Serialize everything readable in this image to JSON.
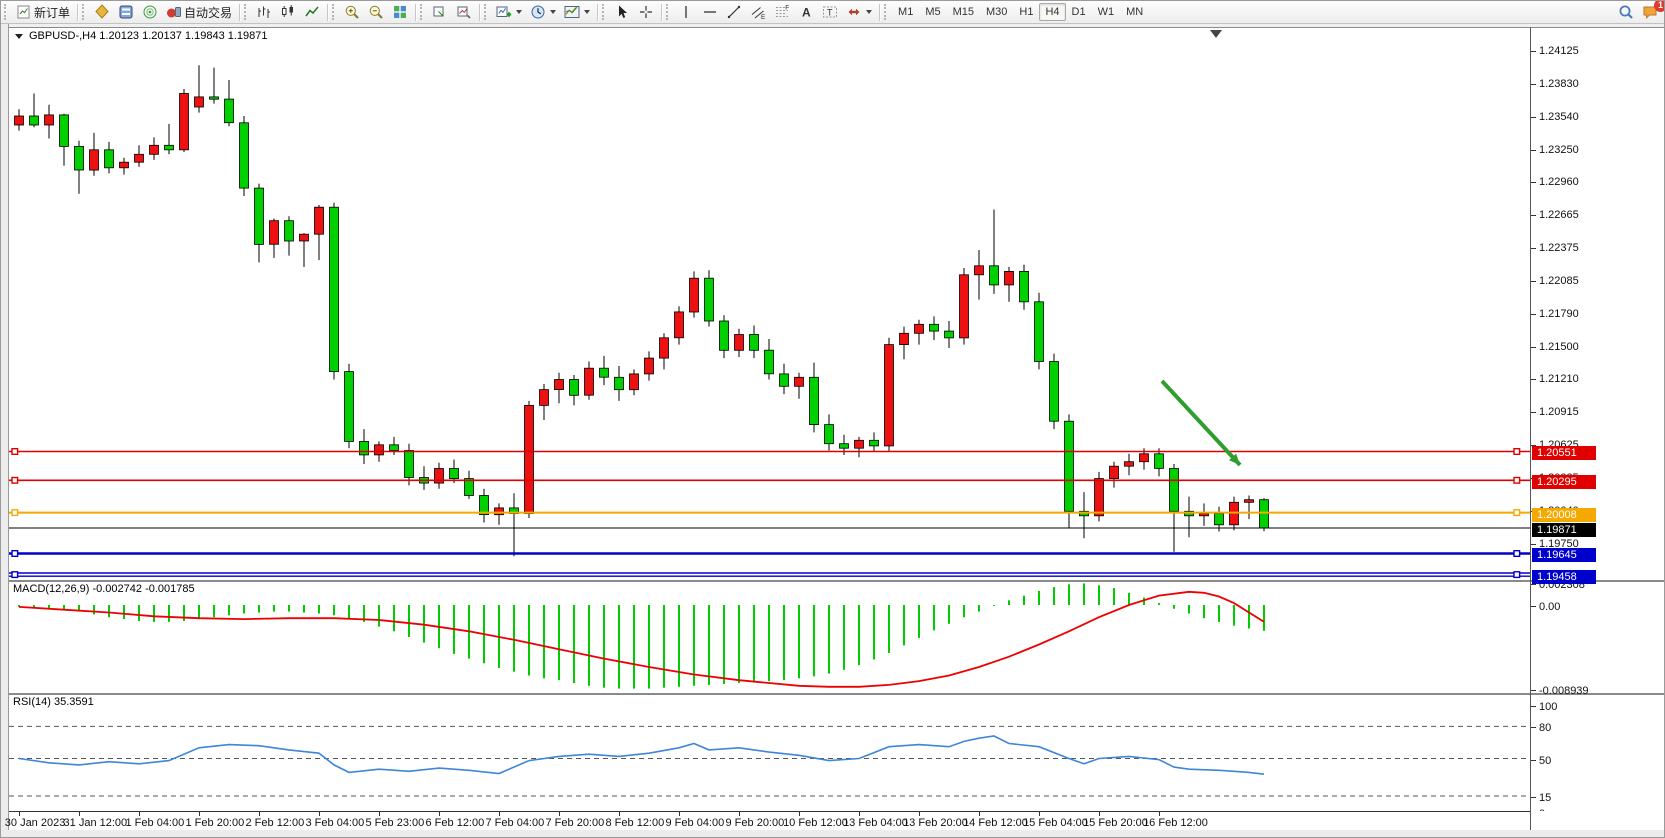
{
  "toolbar": {
    "groups": [
      [
        {
          "name": "new-order-button",
          "icon": "new-order",
          "label": "新订单"
        }
      ],
      [
        {
          "name": "market-watch-button",
          "icon": "market-watch"
        },
        {
          "name": "data-window-button",
          "icon": "data-window"
        },
        {
          "name": "signals-button",
          "icon": "signals"
        },
        {
          "name": "autotrading-button",
          "icon": "autotrading",
          "label": "自动交易"
        }
      ],
      [
        {
          "name": "bar-chart-button",
          "icon": "chart-bars"
        },
        {
          "name": "candlestick-chart-button",
          "icon": "chart-candles"
        },
        {
          "name": "line-chart-button",
          "icon": "chart-line"
        }
      ],
      [
        {
          "name": "zoom-in-button",
          "icon": "zoom-in"
        },
        {
          "name": "zoom-out-button",
          "icon": "zoom-out"
        },
        {
          "name": "tile-windows-button",
          "icon": "tile-windows"
        }
      ],
      [
        {
          "name": "auto-arrange-button",
          "icon": "arrange-windows"
        },
        {
          "name": "track-chart-button",
          "icon": "track-chart"
        }
      ],
      [
        {
          "name": "add-indicator-button",
          "icon": "add-indicator",
          "caret": true
        },
        {
          "name": "periods-button",
          "icon": "periods-clock",
          "caret": true
        },
        {
          "name": "templates-button",
          "icon": "templates",
          "caret": true
        }
      ],
      [
        {
          "name": "cursor-button",
          "icon": "cursor"
        },
        {
          "name": "crosshair-button",
          "icon": "crosshair"
        }
      ],
      [
        {
          "name": "vertical-line-button",
          "icon": "vline"
        },
        {
          "name": "horizontal-line-button",
          "icon": "hline"
        },
        {
          "name": "trendline-button",
          "icon": "trendline"
        },
        {
          "name": "channel-button",
          "icon": "channel"
        },
        {
          "name": "fibonacci-button",
          "icon": "fibonacci"
        },
        {
          "name": "text-button",
          "icon": "text"
        },
        {
          "name": "label-button",
          "icon": "label"
        },
        {
          "name": "arrows-button",
          "icon": "arrows",
          "caret": true
        }
      ]
    ],
    "timeframes": [
      {
        "name": "timeframe-m1",
        "label": "M1"
      },
      {
        "name": "timeframe-m5",
        "label": "M5"
      },
      {
        "name": "timeframe-m15",
        "label": "M15"
      },
      {
        "name": "timeframe-m30",
        "label": "M30"
      },
      {
        "name": "timeframe-h1",
        "label": "H1"
      },
      {
        "name": "timeframe-h4",
        "label": "H4",
        "active": true
      },
      {
        "name": "timeframe-d1",
        "label": "D1"
      },
      {
        "name": "timeframe-w1",
        "label": "W1"
      },
      {
        "name": "timeframe-mn",
        "label": "MN"
      }
    ],
    "right": [
      {
        "name": "search-button",
        "icon": "search"
      },
      {
        "name": "notifications-button",
        "icon": "notifications",
        "badge": "1"
      }
    ],
    "badge_count": "1"
  },
  "chart": {
    "title": "GBPUSD-,H4  1.20123 1.20137 1.19843 1.19871"
  },
  "chart_data": {
    "type": "candlestick",
    "symbol": "GBPUSD-",
    "period": "H4",
    "colors": {
      "bull": "#ee1111",
      "bear": "#00d000",
      "wick": "#000000"
    },
    "y_ticks": [
      "1.24125",
      "1.23830",
      "1.23540",
      "1.23250",
      "1.22960",
      "1.22665",
      "1.22375",
      "1.22085",
      "1.21790",
      "1.21500",
      "1.21210",
      "1.20915",
      "1.20625",
      "1.20335",
      "1.20040",
      "1.19750"
    ],
    "x_labels": [
      "30 Jan 2023",
      "31 Jan 12:00",
      "1 Feb 04:00",
      "1 Feb 20:00",
      "2 Feb 12:00",
      "3 Feb 04:00",
      "5 Feb 23:00",
      "6 Feb 12:00",
      "7 Feb 04:00",
      "7 Feb 20:00",
      "8 Feb 12:00",
      "9 Feb 04:00",
      "9 Feb 20:00",
      "10 Feb 12:00",
      "13 Feb 04:00",
      "13 Feb 20:00",
      "14 Feb 12:00",
      "15 Feb 04:00",
      "15 Feb 20:00",
      "16 Feb 12:00"
    ],
    "x_label_every": 4,
    "ohlc": [
      [
        1.2345,
        1.2359,
        1.234,
        1.2353
      ],
      [
        1.2353,
        1.2373,
        1.2343,
        1.2345
      ],
      [
        1.2345,
        1.2363,
        1.2333,
        1.2354
      ],
      [
        1.2354,
        1.2355,
        1.2309,
        1.2326
      ],
      [
        1.2326,
        1.2331,
        1.2284,
        1.2305
      ],
      [
        1.2305,
        1.2338,
        1.23,
        1.2323
      ],
      [
        1.2323,
        1.233,
        1.2302,
        1.2307
      ],
      [
        1.2307,
        1.2316,
        1.2301,
        1.2312
      ],
      [
        1.2312,
        1.2327,
        1.2308,
        1.2319
      ],
      [
        1.2319,
        1.2334,
        1.2314,
        1.2327
      ],
      [
        1.2327,
        1.2346,
        1.2319,
        1.2323
      ],
      [
        1.2323,
        1.2377,
        1.2321,
        1.2373
      ],
      [
        1.2361,
        1.2398,
        1.2356,
        1.237
      ],
      [
        1.237,
        1.2396,
        1.2364,
        1.2368
      ],
      [
        1.2368,
        1.2385,
        1.2344,
        1.2347
      ],
      [
        1.2347,
        1.2353,
        1.2282,
        1.2289
      ],
      [
        1.2289,
        1.2293,
        1.2223,
        1.2239
      ],
      [
        1.2239,
        1.2262,
        1.2227,
        1.226
      ],
      [
        1.226,
        1.2264,
        1.2229,
        1.2242
      ],
      [
        1.2242,
        1.2249,
        1.2219,
        1.2248
      ],
      [
        1.2248,
        1.2274,
        1.2225,
        1.2272
      ],
      [
        1.2272,
        1.2276,
        1.2119,
        1.2126
      ],
      [
        1.2126,
        1.2133,
        1.2058,
        1.2064
      ],
      [
        1.2064,
        1.2075,
        1.2044,
        1.2052
      ],
      [
        1.2052,
        1.2064,
        1.2046,
        1.2061
      ],
      [
        1.2061,
        1.2068,
        1.2052,
        1.2056
      ],
      [
        1.2056,
        1.2062,
        1.2025,
        1.2032
      ],
      [
        1.2032,
        1.2042,
        1.2021,
        1.2027
      ],
      [
        1.2027,
        1.2045,
        1.2022,
        1.204
      ],
      [
        1.204,
        1.2048,
        1.2027,
        1.2031
      ],
      [
        1.2031,
        1.2038,
        1.2013,
        1.2016
      ],
      [
        1.2016,
        1.2022,
        1.1992,
        1.1999
      ],
      [
        1.1999,
        1.2009,
        1.199,
        1.2005
      ],
      [
        1.2005,
        1.2018,
        1.1962,
        1.2
      ],
      [
        1.2,
        1.21,
        1.1996,
        1.2096
      ],
      [
        1.2096,
        1.2115,
        1.2083,
        1.211
      ],
      [
        1.211,
        1.2125,
        1.2098,
        1.2119
      ],
      [
        1.2119,
        1.2123,
        1.2096,
        1.2105
      ],
      [
        1.2105,
        1.2135,
        1.2101,
        1.2129
      ],
      [
        1.2129,
        1.214,
        1.2114,
        1.2121
      ],
      [
        1.2121,
        1.2131,
        1.21,
        1.211
      ],
      [
        1.211,
        1.2128,
        1.2105,
        1.2124
      ],
      [
        1.2124,
        1.2144,
        1.2118,
        1.2138
      ],
      [
        1.2138,
        1.216,
        1.2128,
        1.2156
      ],
      [
        1.2156,
        1.2184,
        1.215,
        1.2179
      ],
      [
        1.2179,
        1.2215,
        1.2174,
        1.2209
      ],
      [
        1.2209,
        1.2216,
        1.2166,
        1.2171
      ],
      [
        1.2171,
        1.2176,
        1.2138,
        1.2145
      ],
      [
        1.2145,
        1.2164,
        1.2139,
        1.2159
      ],
      [
        1.2159,
        1.2167,
        1.2138,
        1.2145
      ],
      [
        1.2145,
        1.2155,
        1.2119,
        1.2124
      ],
      [
        1.2124,
        1.2133,
        1.2106,
        1.2113
      ],
      [
        1.2113,
        1.2125,
        1.2102,
        1.2121
      ],
      [
        1.2121,
        1.2134,
        1.2072,
        1.2079
      ],
      [
        1.2079,
        1.2088,
        1.2056,
        1.2062
      ],
      [
        1.2062,
        1.207,
        1.2052,
        1.2058
      ],
      [
        1.2058,
        1.2068,
        1.205,
        1.2065
      ],
      [
        1.2065,
        1.2072,
        1.2055,
        1.206
      ],
      [
        1.206,
        1.2156,
        1.2055,
        1.215
      ],
      [
        1.215,
        1.2166,
        1.2137,
        1.216
      ],
      [
        1.216,
        1.2172,
        1.215,
        1.2168
      ],
      [
        1.2168,
        1.2175,
        1.2154,
        1.2162
      ],
      [
        1.2162,
        1.2171,
        1.2147,
        1.2156
      ],
      [
        1.2156,
        1.2218,
        1.215,
        1.2212
      ],
      [
        1.2212,
        1.2234,
        1.219,
        1.222
      ],
      [
        1.222,
        1.227,
        1.2195,
        1.2203
      ],
      [
        1.2203,
        1.2219,
        1.2188,
        1.2215
      ],
      [
        1.2215,
        1.2221,
        1.2181,
        1.2188
      ],
      [
        1.2188,
        1.2196,
        1.2128,
        1.2135
      ],
      [
        1.2135,
        1.2142,
        1.2075,
        1.2082
      ],
      [
        1.2082,
        1.2088,
        1.1987,
        1.2002
      ],
      [
        1.2002,
        1.2019,
        1.1978,
        1.1998
      ],
      [
        1.1998,
        1.2037,
        1.1993,
        1.2031
      ],
      [
        1.2031,
        1.2046,
        1.2023,
        1.2042
      ],
      [
        1.2042,
        1.2053,
        1.2034,
        1.2046
      ],
      [
        1.2046,
        1.2058,
        1.2039,
        1.2053
      ],
      [
        1.2053,
        1.2058,
        1.2033,
        1.204
      ],
      [
        1.204,
        1.2044,
        1.1966,
        1.2002
      ],
      [
        1.2002,
        1.2015,
        1.1979,
        1.1998
      ],
      [
        1.1998,
        1.2009,
        1.1989,
        1.2
      ],
      [
        1.2,
        1.2006,
        1.1984,
        1.199
      ],
      [
        1.199,
        1.2015,
        1.1985,
        1.201
      ],
      [
        1.201,
        1.2016,
        1.1995,
        1.20123
      ],
      [
        1.20123,
        1.20137,
        1.19843,
        1.19871
      ]
    ],
    "price_lines": [
      {
        "name": "resistance-line-1",
        "price": 1.20551,
        "color": "#e00000",
        "width": 1.6,
        "label": "1.20551",
        "tag_bg": "#e00000",
        "handles": true
      },
      {
        "name": "resistance-line-2",
        "price": 1.20295,
        "color": "#e00000",
        "width": 1.6,
        "label": "1.20295",
        "tag_bg": "#e00000",
        "handles": true
      },
      {
        "name": "pivot-line",
        "price": 1.20008,
        "color": "#f5a800",
        "width": 2,
        "label": "1.20008",
        "tag_bg": "#f5a800",
        "handles": true
      },
      {
        "name": "bid-price-line",
        "price": 1.19871,
        "color": "#000000",
        "width": 1,
        "label": "1.19871",
        "tag_bg": "#000000",
        "handles": false
      },
      {
        "name": "support-line-1",
        "price": 1.19645,
        "color": "#0000cc",
        "width": 2.6,
        "label": "1.19645",
        "tag_bg": "#0000cc",
        "handles": true
      },
      {
        "name": "support-line-2",
        "price": 1.19458,
        "color": "#0000cc",
        "width": 1.4,
        "style": "double",
        "label": "1.19458",
        "tag_bg": "#0000cc",
        "handles": true
      }
    ],
    "arrow": {
      "name": "sell-arrow",
      "i1": 76.2,
      "p1": 1.21177,
      "i2": 81.4,
      "p2": 1.20431,
      "color": "#2f9e2f"
    },
    "macd": {
      "display": "MACD(12,26,9) -0.002742 -0.001785",
      "value_main": -0.002742,
      "value_signal": -0.001785,
      "axis_labels": [
        {
          "text": "0.002308",
          "v": 0.002308
        },
        {
          "text": "0.00",
          "v": 0.0
        },
        {
          "text": "-0.008939",
          "v": -0.008939
        }
      ],
      "histogram": [
        -0.0002,
        -0.0003,
        -0.0004,
        -0.0005,
        -0.0007,
        -0.001,
        -0.0013,
        -0.0015,
        -0.0017,
        -0.0018,
        -0.0018,
        -0.0017,
        -0.0015,
        -0.0013,
        -0.0011,
        -0.0009,
        -0.0008,
        -0.0007,
        -0.0007,
        -0.0008,
        -0.0009,
        -0.0011,
        -0.0014,
        -0.0018,
        -0.0023,
        -0.0028,
        -0.0034,
        -0.004,
        -0.0046,
        -0.0052,
        -0.0057,
        -0.0062,
        -0.0067,
        -0.0071,
        -0.0075,
        -0.0078,
        -0.008,
        -0.0083,
        -0.0086,
        -0.0088,
        -0.0089,
        -0.0089,
        -0.0089,
        -0.0088,
        -0.0087,
        -0.0086,
        -0.0085,
        -0.0084,
        -0.0083,
        -0.0082,
        -0.0081,
        -0.008,
        -0.0078,
        -0.0076,
        -0.0073,
        -0.0069,
        -0.0064,
        -0.0058,
        -0.0051,
        -0.0043,
        -0.0035,
        -0.0027,
        -0.002,
        -0.0013,
        -0.0007,
        -0.0001,
        0.0005,
        0.001,
        0.0015,
        0.0019,
        0.0022,
        0.0023,
        0.0021,
        0.0018,
        0.0013,
        0.0008,
        0.0002,
        -0.0004,
        -0.0009,
        -0.0014,
        -0.0018,
        -0.0022,
        -0.0025,
        -0.002742
      ],
      "signal": [
        [
          0,
          -0.0002
        ],
        [
          3,
          -0.0005
        ],
        [
          6,
          -0.0008
        ],
        [
          9,
          -0.0012
        ],
        [
          12,
          -0.0014
        ],
        [
          15,
          -0.0015
        ],
        [
          18,
          -0.0014
        ],
        [
          21,
          -0.0014
        ],
        [
          24,
          -0.0016
        ],
        [
          27,
          -0.0021
        ],
        [
          30,
          -0.0028
        ],
        [
          33,
          -0.0037
        ],
        [
          36,
          -0.0047
        ],
        [
          39,
          -0.0057
        ],
        [
          42,
          -0.0066
        ],
        [
          45,
          -0.0074
        ],
        [
          48,
          -0.008
        ],
        [
          50,
          -0.0083
        ],
        [
          52,
          -0.0086
        ],
        [
          54,
          -0.0087
        ],
        [
          56,
          -0.0087
        ],
        [
          58,
          -0.0085
        ],
        [
          60,
          -0.0081
        ],
        [
          62,
          -0.0075
        ],
        [
          64,
          -0.0066
        ],
        [
          66,
          -0.0055
        ],
        [
          68,
          -0.0042
        ],
        [
          70,
          -0.0028
        ],
        [
          72,
          -0.0013
        ],
        [
          74,
          0.0
        ],
        [
          76,
          0.001
        ],
        [
          78,
          0.0014
        ],
        [
          79,
          0.0013
        ],
        [
          80,
          0.0009
        ],
        [
          81,
          0.0002
        ],
        [
          82,
          -0.0008
        ],
        [
          83,
          -0.001785
        ]
      ],
      "colors": {
        "histogram": "#00cc00",
        "signal": "#ee0000"
      }
    },
    "rsi": {
      "display": "RSI(14) 35.3591",
      "value": 35.3591,
      "axis_labels": [
        {
          "text": "100",
          "v": 100
        },
        {
          "text": "80",
          "v": 80
        },
        {
          "text": "50",
          "v": 50
        },
        {
          "text": "15",
          "v": 15
        },
        {
          "text": "0",
          "v": 0
        }
      ],
      "dashed_levels": [
        80,
        50,
        15
      ],
      "points": [
        [
          0,
          50
        ],
        [
          2,
          46
        ],
        [
          4,
          44
        ],
        [
          6,
          47
        ],
        [
          8,
          45
        ],
        [
          10,
          48
        ],
        [
          12,
          60
        ],
        [
          14,
          63
        ],
        [
          16,
          62
        ],
        [
          18,
          58
        ],
        [
          20,
          55
        ],
        [
          21,
          44
        ],
        [
          22,
          37
        ],
        [
          24,
          40
        ],
        [
          26,
          38
        ],
        [
          28,
          41
        ],
        [
          30,
          39
        ],
        [
          32,
          36
        ],
        [
          34,
          48
        ],
        [
          36,
          52
        ],
        [
          38,
          54
        ],
        [
          40,
          52
        ],
        [
          42,
          55
        ],
        [
          44,
          60
        ],
        [
          45,
          64
        ],
        [
          46,
          58
        ],
        [
          48,
          60
        ],
        [
          50,
          56
        ],
        [
          52,
          53
        ],
        [
          54,
          48
        ],
        [
          56,
          50
        ],
        [
          58,
          61
        ],
        [
          60,
          63
        ],
        [
          62,
          61
        ],
        [
          63,
          66
        ],
        [
          64,
          69
        ],
        [
          65,
          71
        ],
        [
          66,
          64
        ],
        [
          68,
          61
        ],
        [
          70,
          50
        ],
        [
          71,
          45
        ],
        [
          72,
          50
        ],
        [
          74,
          52
        ],
        [
          76,
          49
        ],
        [
          77,
          42
        ],
        [
          78,
          40
        ],
        [
          80,
          39
        ],
        [
          81,
          38
        ],
        [
          82,
          37
        ],
        [
          83,
          35.36
        ]
      ],
      "color": "#3e86d8"
    }
  }
}
